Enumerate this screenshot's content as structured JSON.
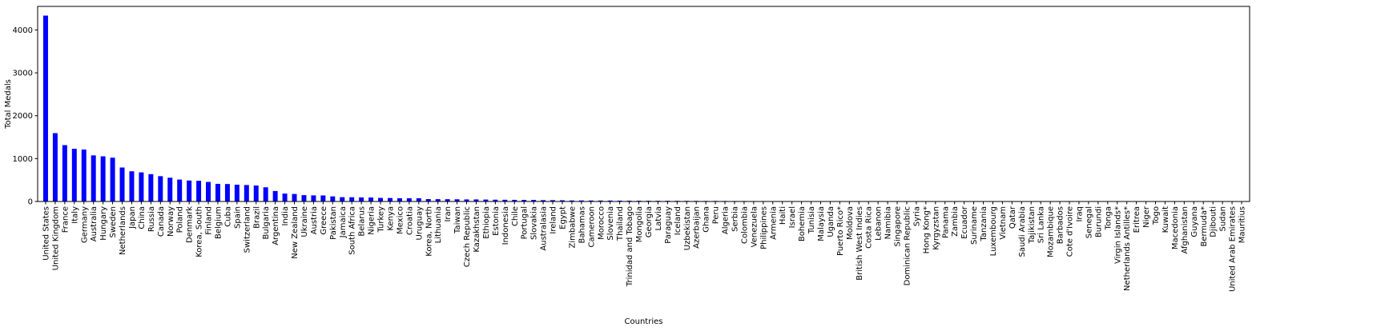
{
  "chart_data": {
    "type": "bar",
    "xlabel": "Countries",
    "ylabel": "Total Medals",
    "ylim": [
      0,
      4550
    ],
    "yticks": [
      0,
      1000,
      2000,
      3000,
      4000
    ],
    "grid": false,
    "bar_color": "#0000ff",
    "categories": [
      "United States",
      "United Kingdom",
      "France",
      "Italy",
      "Germany",
      "Australia",
      "Hungary",
      "Sweden",
      "Netherlands",
      "Japan",
      "China",
      "Russia",
      "Canada",
      "Norway",
      "Poland",
      "Denmark",
      "Korea, South",
      "Finland",
      "Belgium",
      "Cuba",
      "Spain",
      "Switzerland",
      "Brazil",
      "Bulgaria",
      "Argentina",
      "India",
      "New Zealand",
      "Ukraine",
      "Austria",
      "Greece",
      "Pakistan",
      "Jamaica",
      "South Africa",
      "Belarus",
      "Nigeria",
      "Turkey",
      "Kenya",
      "Mexico",
      "Croatia",
      "Uruguay",
      "Korea, North",
      "Lithuania",
      "Iran",
      "Taiwan",
      "Czech Republic",
      "Kazakhstan",
      "Ethiopia",
      "Estonia",
      "Indonesia",
      "Chile",
      "Portugal",
      "Slovakia",
      "Australasia",
      "Ireland",
      "Egypt",
      "Zimbabwe",
      "Bahamas",
      "Cameroon",
      "Morocco",
      "Slovenia",
      "Thailand",
      "Trinidad and Tobago",
      "Mongolia",
      "Georgia",
      "Latvia",
      "Paraguay",
      "Iceland",
      "Uzbekistan",
      "Azerbaijan",
      "Ghana",
      "Peru",
      "Algeria",
      "Serbia",
      "Colombia",
      "Venezuela",
      "Philippines",
      "Armenia",
      "Haiti",
      "Israel",
      "Bohemia",
      "Tunisia",
      "Malaysia",
      "Uganda",
      "Puerto Rico*",
      "Moldova",
      "British West Indies",
      "Costa Rica",
      "Lebanon",
      "Namibia",
      "Singapore",
      "Dominican Republic",
      "Syria",
      "Hong Kong*",
      "Kyrgyzstan",
      "Panama",
      "Zambia",
      "Ecuador",
      "Suriname",
      "Tanzania",
      "Luxembourg",
      "Vietnam",
      "Qatar",
      "Saudi Arabia",
      "Tajikistan",
      "Sri Lanka",
      "Mozambique",
      "Barbados",
      "Cote d'Ivoire",
      "Iraq",
      "Senegal",
      "Burundi",
      "Tonga",
      "Virgin Islands*",
      "Netherlands Antilles*",
      "Eritrea",
      "Niger",
      "Togo",
      "Kuwait",
      "Macedonia",
      "Afghanistan",
      "Guyana",
      "Bermuda*",
      "Djibouti",
      "Sudan",
      "United Arab Emirates",
      "Mauritius"
    ],
    "values": [
      4335,
      1594,
      1314,
      1228,
      1211,
      1075,
      1053,
      1021,
      792,
      704,
      679,
      638,
      590,
      554,
      511,
      489,
      482,
      456,
      411,
      407,
      391,
      384,
      372,
      331,
      244,
      184,
      175,
      148,
      142,
      141,
      119,
      100,
      99,
      94,
      93,
      83,
      81,
      76,
      76,
      76,
      56,
      54,
      53,
      51,
      48,
      48,
      45,
      42,
      40,
      38,
      37,
      36,
      31,
      31,
      28,
      24,
      24,
      23,
      22,
      22,
      20,
      19,
      18,
      17,
      16,
      16,
      15,
      14,
      14,
      13,
      13,
      12,
      11,
      11,
      10,
      10,
      9,
      8,
      7,
      7,
      6,
      6,
      6,
      5,
      5,
      5,
      4,
      4,
      4,
      4,
      4,
      4,
      3,
      3,
      3,
      3,
      3,
      3,
      3,
      2,
      2,
      2,
      2,
      2,
      2,
      2,
      1,
      1,
      1,
      1,
      1,
      1,
      1,
      1,
      1,
      1,
      1,
      1,
      1,
      1,
      1,
      1,
      1,
      1,
      1,
      1
    ]
  }
}
